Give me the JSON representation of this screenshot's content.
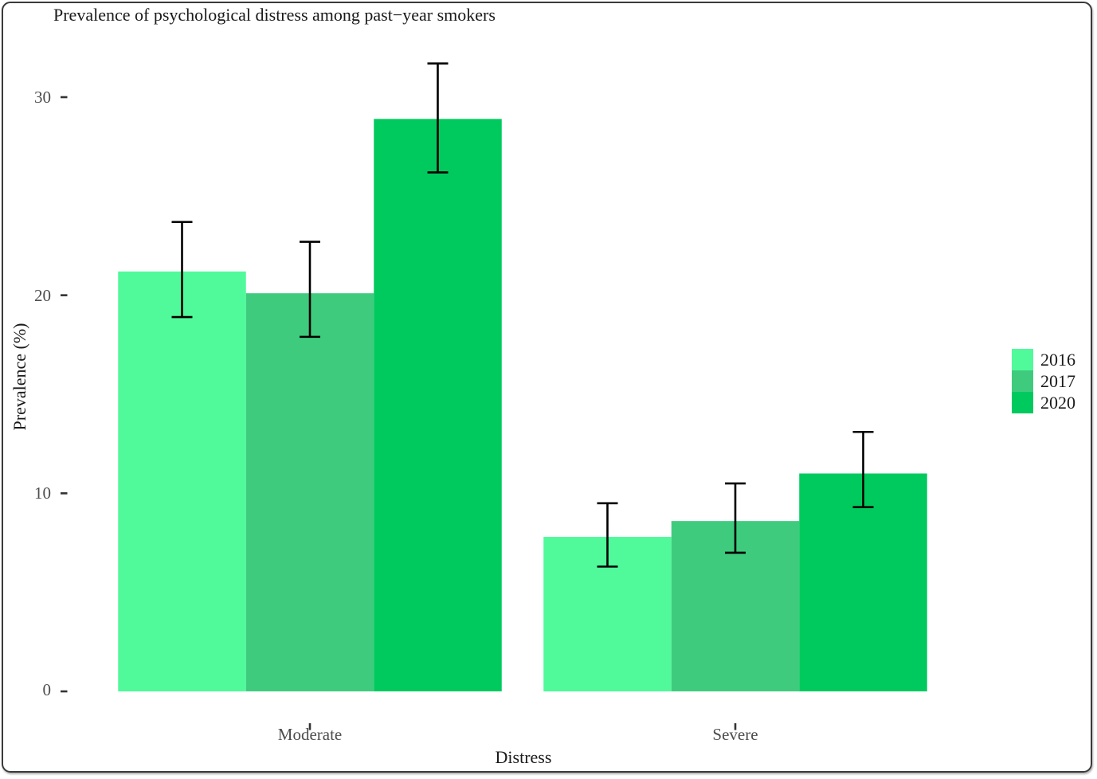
{
  "chart_data": {
    "type": "bar",
    "title": "Prevalence of psychological distress among past−year smokers",
    "xlabel": "Distress",
    "ylabel": "Prevalence (%)",
    "categories": [
      "Moderate",
      "Severe"
    ],
    "series": [
      {
        "name": "2016",
        "color": "#50FA9B",
        "values": [
          21.2,
          7.8
        ],
        "ci_low": [
          18.9,
          6.3
        ],
        "ci_high": [
          23.7,
          9.5
        ]
      },
      {
        "name": "2017",
        "color": "#3FCB7D",
        "values": [
          20.1,
          8.6
        ],
        "ci_low": [
          17.9,
          7.0
        ],
        "ci_high": [
          22.7,
          10.5
        ]
      },
      {
        "name": "2020",
        "color": "#00CA5E",
        "values": [
          28.9,
          11.0
        ],
        "ci_low": [
          26.2,
          9.3
        ],
        "ci_high": [
          31.7,
          13.1
        ]
      }
    ],
    "yticks": [
      0,
      10,
      20,
      30
    ],
    "ylim": [
      0,
      32
    ],
    "legend_position": "right",
    "grid": "off",
    "error_bars": true,
    "error_bar_color": "#000000",
    "tick_color": "#333333",
    "axis_text_color": "#4d4d4d",
    "title_color": "#1a1a1a"
  }
}
